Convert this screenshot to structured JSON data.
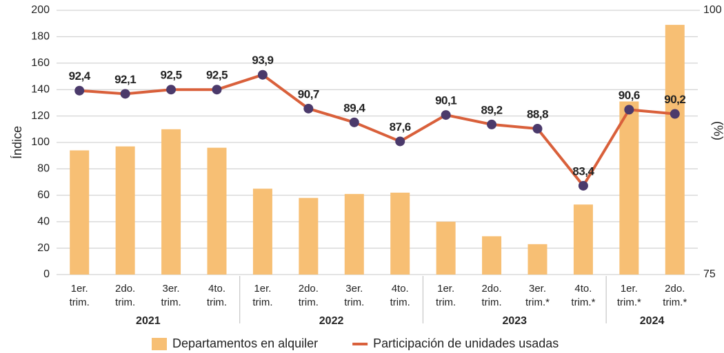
{
  "chart_data": {
    "type": "combo",
    "ylabel": "Índice",
    "y2label": "(%)",
    "categories": [
      "1er.\ntrim.",
      "2do.\ntrim.",
      "3er.\ntrim.",
      "4to.\ntrim.",
      "1er.\ntrim.",
      "2do.\ntrim.",
      "3er.\ntrim.",
      "4to.\ntrim.",
      "1er.\ntrim.",
      "2do.\ntrim.",
      "3er.\ntrim.*",
      "4to.\ntrim.*",
      "1er.\ntrim.*",
      "2do.\ntrim.*"
    ],
    "category_groups": [
      "2021",
      "2021",
      "2021",
      "2021",
      "2022",
      "2022",
      "2022",
      "2022",
      "2023",
      "2023",
      "2023",
      "2023",
      "2024",
      "2024"
    ],
    "series": [
      {
        "name": "Departamentos en alquiler",
        "type": "bar",
        "color": "#f7bf74",
        "values": [
          94,
          97,
          110,
          96,
          65,
          58,
          61,
          62,
          40,
          29,
          23,
          53,
          131,
          189
        ]
      },
      {
        "name": "Participación de unidades usadas",
        "type": "line",
        "axis": "y2",
        "color": "#d9603b",
        "marker_color": "#4b3a6b",
        "values": [
          92.4,
          92.1,
          92.5,
          92.5,
          93.9,
          90.7,
          89.4,
          87.6,
          90.1,
          89.2,
          88.8,
          83.4,
          90.6,
          90.2
        ],
        "value_labels": [
          "92,4",
          "92,1",
          "92,5",
          "92,5",
          "93,9",
          "90,7",
          "89,4",
          "87,6",
          "90,1",
          "89,2",
          "88,8",
          "83,4",
          "90,6",
          "90,2"
        ]
      }
    ],
    "ylim": [
      0,
      200
    ],
    "yticks": [
      0,
      20,
      40,
      60,
      80,
      100,
      120,
      140,
      160,
      180,
      200
    ],
    "y2lim": [
      75,
      100
    ],
    "y2ticks": [
      75,
      100
    ],
    "grid": true
  }
}
